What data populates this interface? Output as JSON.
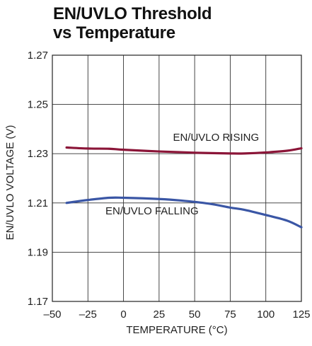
{
  "chart_data": {
    "type": "line",
    "title_lines": [
      "EN/UVLO Threshold",
      "vs Temperature"
    ],
    "xlabel": "TEMPERATURE (°C)",
    "ylabel": "EN/UVLO VOLTAGE (V)",
    "xlim": [
      -50,
      125
    ],
    "ylim": [
      1.17,
      1.27
    ],
    "x_ticks": [
      -50,
      -25,
      0,
      25,
      50,
      75,
      100,
      125
    ],
    "x_tick_labels": [
      "–50",
      "–25",
      "0",
      "25",
      "50",
      "75",
      "100",
      "125"
    ],
    "y_ticks": [
      1.17,
      1.19,
      1.21,
      1.23,
      1.25,
      1.27
    ],
    "y_tick_labels": [
      "1.17",
      "1.19",
      "1.21",
      "1.23",
      "1.25",
      "1.27"
    ],
    "grid": true,
    "series": [
      {
        "name": "EN/UVLO RISING",
        "color": "#8b1538",
        "x": [
          -40,
          -25,
          -10,
          0,
          25,
          50,
          75,
          85,
          100,
          115,
          125
        ],
        "y": [
          1.2325,
          1.2321,
          1.232,
          1.2316,
          1.2309,
          1.2304,
          1.2301,
          1.2301,
          1.2305,
          1.2312,
          1.2322
        ]
      },
      {
        "name": "EN/UVLO FALLING",
        "color": "#3a56a5",
        "x": [
          -40,
          -25,
          -10,
          0,
          25,
          40,
          60,
          75,
          85,
          100,
          115,
          125
        ],
        "y": [
          1.21,
          1.2112,
          1.2121,
          1.2121,
          1.2116,
          1.211,
          1.2097,
          1.2081,
          1.2072,
          1.2051,
          1.2028,
          1.2001
        ]
      }
    ],
    "annotations": [
      {
        "text": "EN/UVLO RISING",
        "x": 65,
        "y": 1.2353
      },
      {
        "text": "EN/UVLO FALLING",
        "x": 20,
        "y": 1.2054
      }
    ]
  }
}
